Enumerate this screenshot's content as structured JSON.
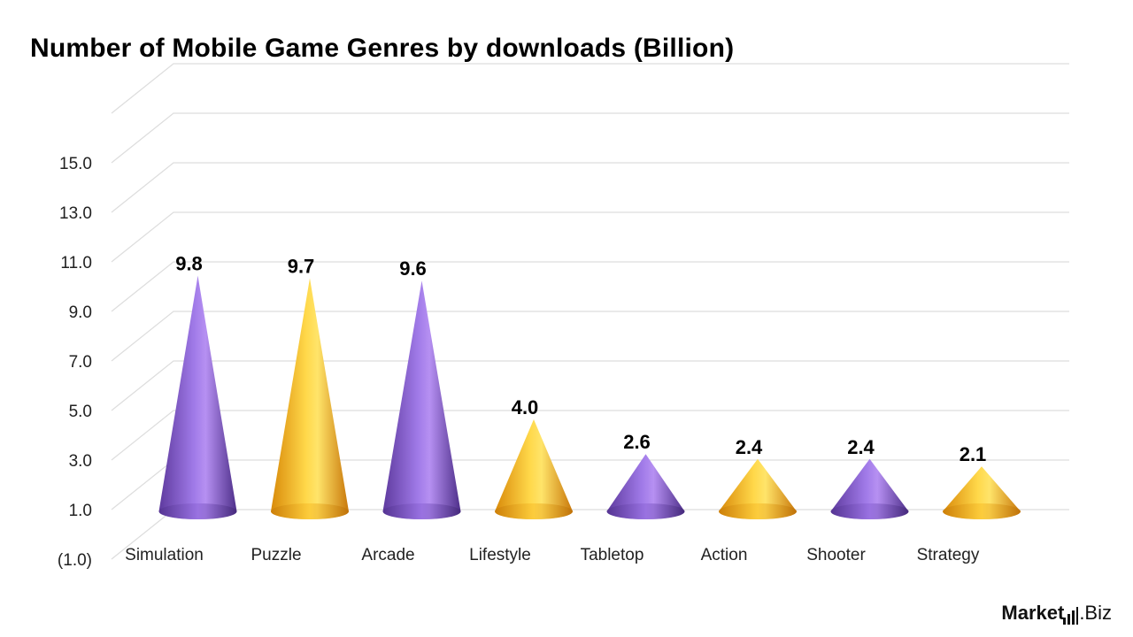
{
  "title": "Number of Mobile Game Genres by downloads (Billion)",
  "brand": {
    "name": "Market",
    "suffix": ".Biz",
    "icon": "bar-chart-icon"
  },
  "colors": {
    "purple": "#8A5CD6",
    "gold": "#F6B21A",
    "grid": "#DDDDDD",
    "text": "#222222"
  },
  "chart_data": {
    "type": "bar",
    "style": "3d-cone",
    "categories": [
      "Simulation",
      "Puzzle",
      "Arcade",
      "Lifestyle",
      "Tabletop",
      "Action",
      "Shooter",
      "Strategy"
    ],
    "values": [
      9.8,
      9.7,
      9.6,
      4.0,
      2.6,
      2.4,
      2.4,
      2.1
    ],
    "value_labels": [
      "9.8",
      "9.7",
      "9.6",
      "4.0",
      "2.6",
      "2.4",
      "2.4",
      "2.1"
    ],
    "bar_colors": [
      "purple",
      "gold",
      "purple",
      "gold",
      "purple",
      "gold",
      "purple",
      "gold"
    ],
    "yticks": [
      -1,
      1,
      3,
      5,
      7,
      9,
      11,
      13,
      15
    ],
    "ytick_labels": [
      "(1.0)",
      "1.0",
      "3.0",
      "5.0",
      "7.0",
      "9.0",
      "11.0",
      "13.0",
      "15.0"
    ],
    "ylim": [
      -1,
      17
    ],
    "grid": true,
    "legend": "none",
    "xlabel": "",
    "ylabel": ""
  }
}
